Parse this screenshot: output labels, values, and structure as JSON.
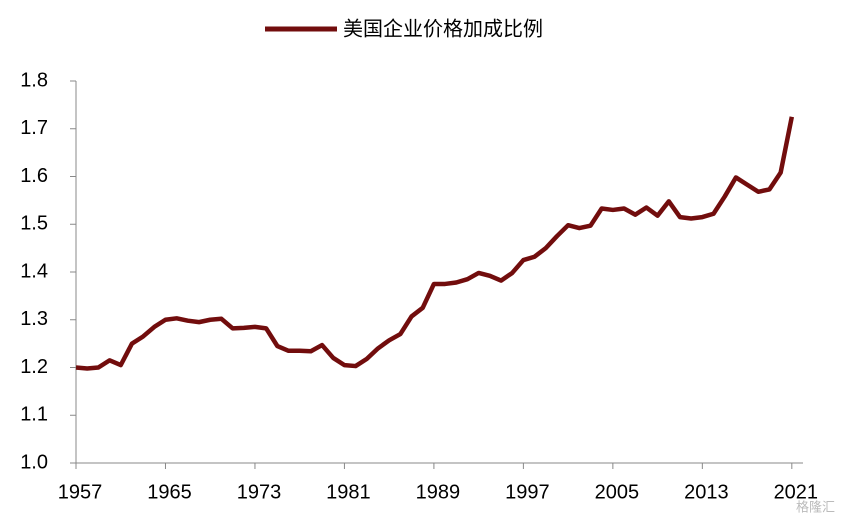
{
  "chart_data": {
    "type": "line",
    "x": [
      1957,
      1958,
      1959,
      1960,
      1961,
      1962,
      1963,
      1964,
      1965,
      1966,
      1967,
      1968,
      1969,
      1970,
      1971,
      1972,
      1973,
      1974,
      1975,
      1976,
      1977,
      1978,
      1979,
      1980,
      1981,
      1982,
      1983,
      1984,
      1985,
      1986,
      1987,
      1988,
      1989,
      1990,
      1991,
      1992,
      1993,
      1994,
      1995,
      1996,
      1997,
      1998,
      1999,
      2000,
      2001,
      2002,
      2003,
      2004,
      2005,
      2006,
      2007,
      2008,
      2009,
      2010,
      2011,
      2012,
      2013,
      2014,
      2015,
      2016,
      2017,
      2018,
      2019,
      2020,
      2021
    ],
    "series": [
      {
        "name": "美国企业价格加成比例",
        "color": "#720d0d",
        "values": [
          1.2,
          1.198,
          1.2,
          1.215,
          1.205,
          1.25,
          1.265,
          1.285,
          1.3,
          1.303,
          1.298,
          1.295,
          1.3,
          1.302,
          1.282,
          1.283,
          1.285,
          1.282,
          1.245,
          1.235,
          1.235,
          1.234,
          1.247,
          1.22,
          1.205,
          1.203,
          1.218,
          1.24,
          1.257,
          1.27,
          1.307,
          1.325,
          1.375,
          1.375,
          1.378,
          1.385,
          1.398,
          1.392,
          1.382,
          1.398,
          1.425,
          1.432,
          1.45,
          1.475,
          1.498,
          1.492,
          1.497,
          1.533,
          1.53,
          1.533,
          1.52,
          1.535,
          1.518,
          1.548,
          1.515,
          1.512,
          1.515,
          1.522,
          1.558,
          1.598,
          1.583,
          1.568,
          1.573,
          1.608,
          1.725
        ]
      }
    ],
    "xlim": [
      1957,
      2022
    ],
    "xticks": [
      1957,
      1965,
      1973,
      1981,
      1989,
      1997,
      2005,
      2013,
      2021
    ],
    "ylim": [
      1.0,
      1.8
    ],
    "yticks": [
      {
        "value": 1.0,
        "label": "1.0"
      },
      1.1,
      1.2,
      1.3,
      1.4,
      1.5,
      1.6,
      1.7,
      1.8
    ],
    "grid": false,
    "legend": "top",
    "watermark": "格隆汇"
  }
}
